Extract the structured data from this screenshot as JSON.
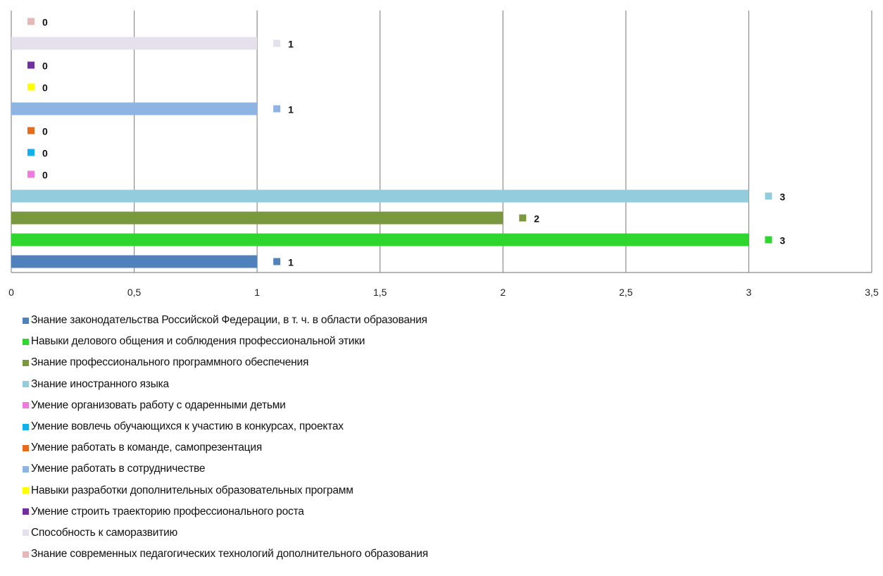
{
  "chart_data": {
    "type": "bar",
    "orientation": "horizontal",
    "xlim": [
      0,
      3.5
    ],
    "x_ticks": [
      0,
      0.5,
      1,
      1.5,
      2,
      2.5,
      3,
      3.5
    ],
    "x_tick_labels": [
      "0",
      "0,5",
      "1",
      "1,5",
      "2",
      "2,5",
      "3",
      "3,5"
    ],
    "grid": true,
    "legend_position": "bottom",
    "series": [
      {
        "name": "Знание законодательства Российской Федерации, в т. ч. в области образования",
        "value": 1,
        "label": "1",
        "color": "#4F81BD"
      },
      {
        "name": "Навыки делового общения и соблюдения профессиональной этики",
        "value": 3,
        "label": "3",
        "color": "#2ED62E"
      },
      {
        "name": "Знание профессионального программного обеспечения",
        "value": 2,
        "label": "2",
        "color": "#7A993E"
      },
      {
        "name": "Знание иностранного языка",
        "value": 3,
        "label": "3",
        "color": "#93CDDD"
      },
      {
        "name": "Умение организовать работу с одаренными детьми",
        "value": 0,
        "label": "0",
        "color": "#F07AE0"
      },
      {
        "name": "Умение вовлечь обучающихся к участию в конкурсах, проектах",
        "value": 0,
        "label": "0",
        "color": "#12B0EC"
      },
      {
        "name": "Умение работать в команде, самопрезентация",
        "value": 0,
        "label": "0",
        "color": "#E86B1C"
      },
      {
        "name": "Умение работать в сотрудничестве",
        "value": 1,
        "label": "1",
        "color": "#8EB4E3"
      },
      {
        "name": "Навыки разработки дополнительных образовательных программ",
        "value": 0,
        "label": "0",
        "color": "#FFFF00"
      },
      {
        "name": "Умение строить траекторию профессионального роста",
        "value": 0,
        "label": "0",
        "color": "#7030A0"
      },
      {
        "name": "Способность к саморазвитию",
        "value": 1,
        "label": "1",
        "color": "#E4E1EC"
      },
      {
        "name": "Знание современных педагогических технологий дополнительного образования",
        "value": 0,
        "label": "0",
        "color": "#E6B9B8"
      }
    ]
  }
}
